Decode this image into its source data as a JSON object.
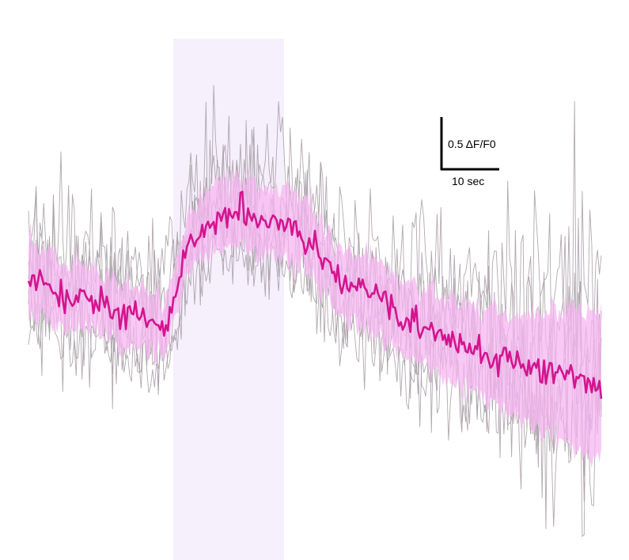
{
  "chart_data": {
    "type": "line",
    "title": "",
    "xlabel": "",
    "ylabel": "",
    "xlim": [
      0,
      93
    ],
    "ylim": [
      -1.9,
      2.1
    ],
    "stimulus_window": [
      23.5,
      41.5
    ],
    "scale_bar": {
      "y_value": 0.5,
      "y_label": "0.5 ΔF/F0",
      "x_value": 10,
      "x_label": "10 sec"
    },
    "colors": {
      "mean": "#d4148f",
      "sem_band": "#f7b6f2",
      "trials": "#a8a0a6",
      "stimulus": "#f6effc",
      "scale": "#000000"
    },
    "mean_anchors": {
      "x": [
        0,
        3,
        6,
        10,
        14,
        18,
        22,
        23.5,
        26,
        30,
        34,
        38,
        42,
        46,
        50,
        54,
        58,
        62,
        66,
        70,
        74,
        78,
        82,
        86,
        90,
        93
      ],
      "y": [
        0.1,
        0.08,
        -0.04,
        -0.02,
        -0.12,
        -0.16,
        -0.24,
        -0.05,
        0.35,
        0.55,
        0.6,
        0.52,
        0.5,
        0.38,
        0.12,
        0.02,
        -0.08,
        -0.2,
        -0.28,
        -0.35,
        -0.42,
        -0.48,
        -0.54,
        -0.58,
        -0.62,
        -0.66
      ]
    },
    "sem_halfwidth": {
      "x": [
        0,
        10,
        23,
        30,
        40,
        50,
        60,
        70,
        80,
        85,
        93
      ],
      "y": [
        0.28,
        0.22,
        0.2,
        0.24,
        0.26,
        0.24,
        0.26,
        0.3,
        0.38,
        0.45,
        0.55
      ]
    },
    "trial_count": 6
  }
}
